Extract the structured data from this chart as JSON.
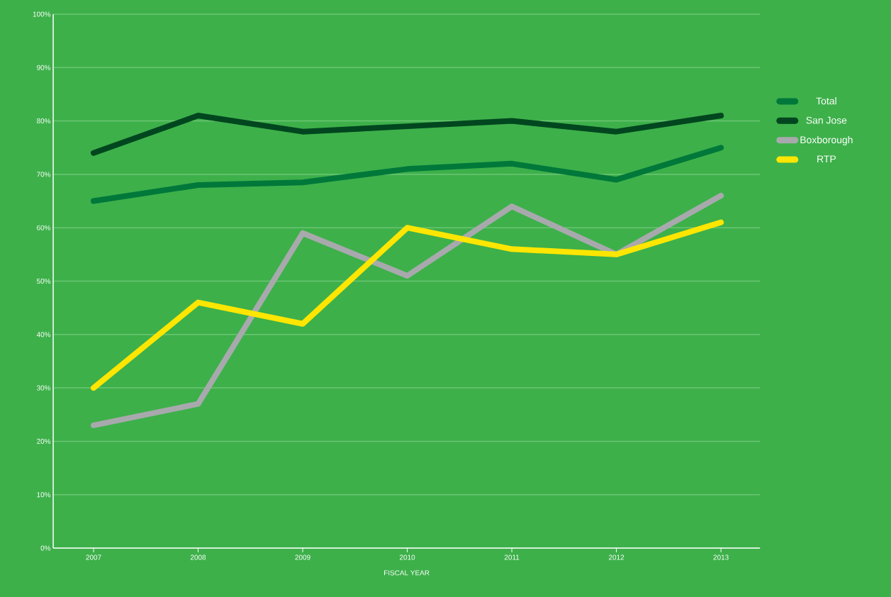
{
  "chart_data": {
    "type": "line",
    "xlabel": "FISCAL YEAR",
    "categories": [
      "2007",
      "2008",
      "2009",
      "2010",
      "2011",
      "2012",
      "2013"
    ],
    "series": [
      {
        "name": "Total",
        "color": "#00783a",
        "values": [
          65,
          68,
          68.5,
          71,
          72,
          69,
          75
        ]
      },
      {
        "name": "San Jose",
        "color": "#00461e",
        "values": [
          74,
          81,
          78,
          79,
          80,
          78,
          81
        ]
      },
      {
        "name": "Boxborough",
        "color": "#a8a9ad",
        "values": [
          23,
          27,
          59,
          51,
          64,
          55,
          66
        ]
      },
      {
        "name": "RTP",
        "color": "#ffe600",
        "values": [
          30,
          46,
          42,
          60,
          56,
          55,
          61
        ]
      }
    ],
    "ylim": [
      0,
      100
    ],
    "yticks": [
      {
        "value": 0,
        "label": "0%"
      },
      {
        "value": 10,
        "label": "10%"
      },
      {
        "value": 20,
        "label": "20%"
      },
      {
        "value": 30,
        "label": "30%"
      },
      {
        "value": 40,
        "label": "40%"
      },
      {
        "value": 50,
        "label": "50%"
      },
      {
        "value": 60,
        "label": "60%"
      },
      {
        "value": 70,
        "label": "70%"
      },
      {
        "value": 80,
        "label": "80%"
      },
      {
        "value": 90,
        "label": "90%"
      },
      {
        "value": 100,
        "label": "100%"
      }
    ],
    "grid": "y",
    "legend": "right",
    "marker": "none",
    "line_style": "solid"
  }
}
